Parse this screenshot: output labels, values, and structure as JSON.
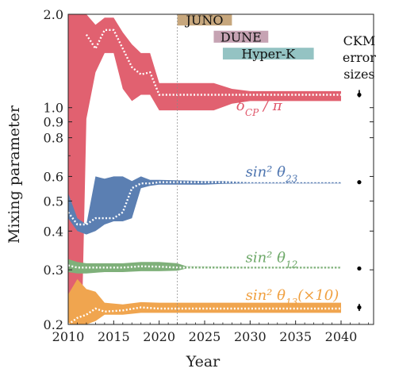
{
  "chart_data": {
    "type": "area",
    "xlabel": "Year",
    "ylabel": "Mixing parameter",
    "xlim": [
      2010,
      2045
    ],
    "ylim": [
      0.2,
      2.0
    ],
    "yscale": "log",
    "xticks": [
      2010,
      2015,
      2020,
      2025,
      2030,
      2035,
      2040
    ],
    "yticks": [
      {
        "v": 0.2,
        "label": "0.2"
      },
      {
        "v": 0.3,
        "label": "0.3"
      },
      {
        "v": 0.4,
        "label": "0.4"
      },
      {
        "v": 0.5,
        "label": "0.5"
      },
      {
        "v": 0.6,
        "label": "0.6"
      },
      {
        "v": 0.8,
        "label": "0.8"
      },
      {
        "v": 0.9,
        "label": "0.9"
      },
      {
        "v": 1.0,
        "label": "1.0"
      },
      {
        "v": 2.0,
        "label": "2.0"
      }
    ],
    "minor_yticks": [
      0.7
    ],
    "reference_line_x": 2022,
    "experiments": [
      {
        "name": "JUNO",
        "start": 2022,
        "end": 2028,
        "y_top": 2.0,
        "y_bottom": 1.84,
        "color": "#c7a77d"
      },
      {
        "name": "DUNE",
        "start": 2026,
        "end": 2032,
        "y_top": 1.77,
        "y_bottom": 1.62,
        "color": "#c6a3b3"
      },
      {
        "name": "Hyper-K",
        "start": 2027,
        "end": 2037,
        "y_top": 1.56,
        "y_bottom": 1.43,
        "color": "#94c3c3"
      }
    ],
    "series": [
      {
        "name": "δCP/π",
        "label": "δ_CP / π",
        "color": "#e16170",
        "label_color": "#e0566a",
        "x": [
          2010,
          2011.5,
          2012,
          2013,
          2014,
          2015,
          2016,
          2017,
          2018,
          2019,
          2020,
          2026,
          2028,
          2030,
          2040
        ],
        "upper": [
          2.0,
          2.0,
          2.0,
          1.85,
          1.95,
          1.95,
          1.75,
          1.6,
          1.5,
          1.5,
          1.2,
          1.2,
          1.15,
          1.13,
          1.13
        ],
        "lower": [
          0.2,
          0.2,
          0.92,
          1.3,
          1.5,
          1.5,
          1.15,
          1.05,
          1.1,
          1.1,
          0.98,
          0.98,
          1.03,
          1.05,
          1.05
        ],
        "central": [
          null,
          null,
          1.72,
          1.55,
          1.78,
          1.78,
          1.55,
          1.35,
          1.28,
          1.3,
          1.1,
          1.1,
          1.1,
          1.1,
          1.1
        ]
      },
      {
        "name": "sin²θ23",
        "label": "sin² θ23",
        "color": "#5b7fb2",
        "label_color": "#4e75b0",
        "x": [
          2010,
          2011,
          2012,
          2013,
          2014,
          2015,
          2016,
          2017,
          2018,
          2019,
          2020,
          2025,
          2027,
          2030,
          2040
        ],
        "upper": [
          0.53,
          0.44,
          0.42,
          0.6,
          0.59,
          0.6,
          0.6,
          0.58,
          0.6,
          0.585,
          0.585,
          0.58,
          0.58,
          0.575,
          0.575
        ],
        "lower": [
          0.44,
          0.4,
          0.39,
          0.4,
          0.42,
          0.43,
          0.43,
          0.44,
          0.55,
          0.56,
          0.565,
          0.565,
          0.568,
          0.57,
          0.57
        ],
        "central": [
          0.46,
          0.42,
          0.42,
          0.44,
          0.44,
          0.44,
          0.46,
          0.55,
          0.57,
          0.57,
          0.575,
          0.575,
          0.575,
          0.575,
          0.575
        ]
      },
      {
        "name": "sin²θ12",
        "label": "sin² θ12",
        "color": "#7fb07a",
        "label_color": "#6da868",
        "x": [
          2010,
          2011,
          2012,
          2014,
          2016,
          2018,
          2020,
          2022,
          2023,
          2030,
          2040
        ],
        "upper": [
          0.325,
          0.318,
          0.315,
          0.315,
          0.315,
          0.318,
          0.318,
          0.315,
          0.308,
          0.307,
          0.307
        ],
        "lower": [
          0.295,
          0.292,
          0.292,
          0.295,
          0.295,
          0.297,
          0.297,
          0.298,
          0.303,
          0.303,
          0.303
        ],
        "central": [
          0.31,
          0.305,
          0.305,
          0.305,
          0.305,
          0.308,
          0.307,
          0.305,
          0.305,
          0.305,
          0.305
        ]
      },
      {
        "name": "sin²θ13(×10)",
        "label": "sin² θ13(×10)",
        "color": "#f0a54f",
        "label_color": "#f0a040",
        "x": [
          2010,
          2011,
          2012,
          2013,
          2014,
          2016,
          2018,
          2020,
          2022,
          2030,
          2040
        ],
        "upper": [
          0.25,
          0.28,
          0.26,
          0.255,
          0.235,
          0.232,
          0.236,
          0.235,
          0.235,
          0.235,
          0.235
        ],
        "lower": [
          0.2,
          0.2,
          0.2,
          0.205,
          0.215,
          0.215,
          0.218,
          0.218,
          0.218,
          0.218,
          0.218
        ],
        "central": [
          0.2,
          0.21,
          0.215,
          0.225,
          0.22,
          0.222,
          0.227,
          0.225,
          0.225,
          0.225,
          0.225
        ]
      }
    ],
    "ckm_title": [
      "CKM",
      "error",
      "sizes"
    ],
    "ckm_error_bars": [
      {
        "y": 1.1,
        "lo": 1.08,
        "hi": 1.14
      },
      {
        "y": 0.575,
        "lo": 0.568,
        "hi": 0.583
      },
      {
        "y": 0.303,
        "lo": 0.302,
        "hi": 0.304
      },
      {
        "y": 0.227,
        "lo": 0.221,
        "hi": 0.233
      }
    ],
    "ckm_x": 2042
  }
}
